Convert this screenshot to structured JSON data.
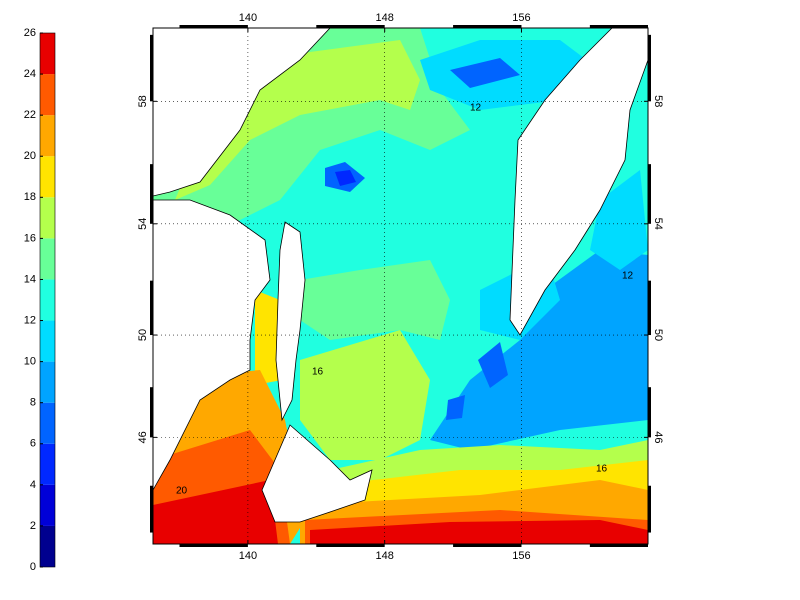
{
  "colorbar": {
    "ticks": [
      0,
      2,
      4,
      6,
      8,
      10,
      12,
      14,
      16,
      18,
      20,
      22,
      24,
      26
    ],
    "colors": [
      "#00008f",
      "#0000d8",
      "#0028ff",
      "#0064ff",
      "#00a4ff",
      "#00dcff",
      "#20ffe0",
      "#68ff98",
      "#b4ff4c",
      "#ffe400",
      "#ffa800",
      "#ff5a00",
      "#e80000",
      "#900000"
    ]
  },
  "map": {
    "lonlim": [
      134.45,
      163.4
    ],
    "latlim": [
      41.5,
      60.2
    ],
    "lon_ticks": [
      140,
      148,
      156
    ],
    "lat_ticks": [
      46,
      50,
      54,
      58
    ],
    "grid": true,
    "contour_labels": [
      "12",
      "12",
      "16",
      "16",
      "20"
    ]
  }
}
